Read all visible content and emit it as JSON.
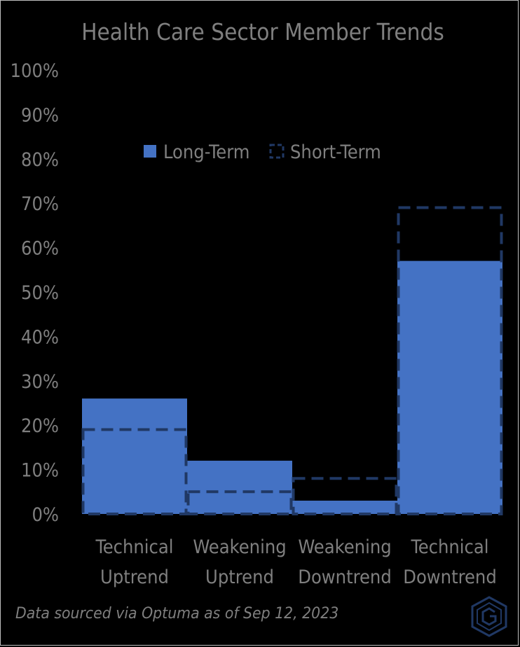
{
  "chart_data": {
    "type": "bar",
    "title": "Health Care Sector Member Trends",
    "categories": [
      [
        "Technical",
        "Uptrend"
      ],
      [
        "Weakening",
        "Uptrend"
      ],
      [
        "Weakening",
        "Downtrend"
      ],
      [
        "Technical",
        "Downtrend"
      ]
    ],
    "series": [
      {
        "name": "Long-Term",
        "values": [
          26,
          12,
          3,
          57
        ],
        "style": "filled",
        "color": "#4472c4"
      },
      {
        "name": "Short-Term",
        "values": [
          19,
          5,
          8,
          69
        ],
        "style": "dashed-outline",
        "color": "#203864"
      }
    ],
    "y_ticks": [
      "0%",
      "10%",
      "20%",
      "30%",
      "40%",
      "50%",
      "60%",
      "70%",
      "80%",
      "90%",
      "100%"
    ],
    "ylim": [
      0,
      100
    ],
    "grid": false,
    "legend_position": "top-center",
    "background": "#000000",
    "text_color": "#7f7f7f"
  },
  "source_note": "Data sourced via Optuma as of Sep 12, 2023",
  "logo": {
    "icon": "hexagon-g-logo",
    "color": "#203864"
  }
}
